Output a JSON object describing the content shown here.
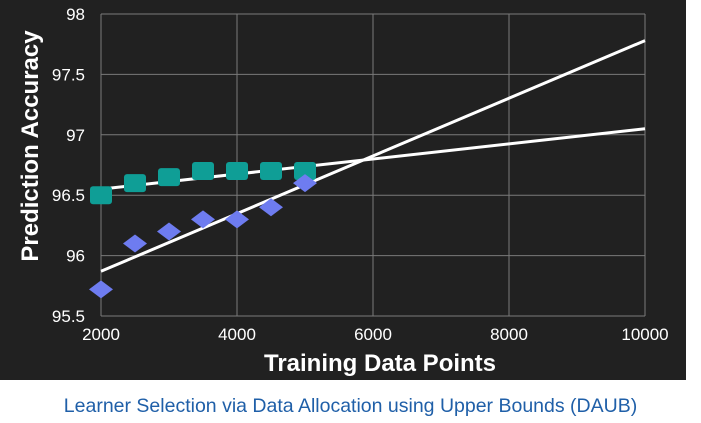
{
  "caption": "Learner Selection via Data Allocation using Upper Bounds (DAUB)",
  "colors": {
    "background": "#212121",
    "grid": "#7a7a7a",
    "text": "#ffffff",
    "caption": "#1f5fa8",
    "square_series": "#0f9e96",
    "diamond_series": "#6e7cf0",
    "fit_lines": "#ffffff"
  },
  "chart_data": {
    "type": "scatter",
    "title": "",
    "xlabel": "Training Data Points",
    "ylabel": "Prediction Accuracy",
    "xlim": [
      2000,
      10000
    ],
    "ylim": [
      95.5,
      98
    ],
    "x_ticks": [
      "2000",
      "4000",
      "6000",
      "8000",
      "10000"
    ],
    "y_ticks": [
      "95.5",
      "96",
      "96.5",
      "97",
      "97.5",
      "98"
    ],
    "grid": true,
    "series": [
      {
        "marker": "square",
        "x": [
          2000,
          2500,
          3000,
          3500,
          4000,
          4500,
          5000
        ],
        "y": [
          96.5,
          96.6,
          96.65,
          96.7,
          96.7,
          96.7,
          96.7
        ]
      },
      {
        "marker": "diamond",
        "x": [
          2000,
          2500,
          3000,
          3500,
          4000,
          4500,
          5000
        ],
        "y": [
          95.72,
          96.1,
          96.2,
          96.3,
          96.3,
          96.4,
          96.6
        ]
      }
    ],
    "trend_lines": [
      {
        "x": [
          2000,
          10000
        ],
        "y": [
          96.55,
          97.05
        ]
      },
      {
        "x": [
          2000,
          10000
        ],
        "y": [
          95.87,
          97.78
        ]
      }
    ]
  }
}
